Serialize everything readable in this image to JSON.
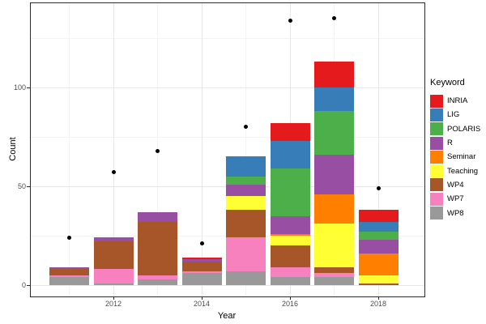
{
  "chart_data": {
    "type": "bar",
    "stacked": true,
    "title": "",
    "xlabel": "Year",
    "ylabel": "Count",
    "categories": [
      2011,
      2012,
      2013,
      2014,
      2015,
      2016,
      2017,
      2018
    ],
    "series": [
      {
        "name": "INRIA",
        "color": "#E41A1C",
        "values": [
          0,
          0,
          0,
          1,
          0,
          9,
          13,
          6
        ]
      },
      {
        "name": "LIG",
        "color": "#377EB8",
        "values": [
          0,
          0,
          0,
          0,
          10,
          14,
          12,
          5
        ]
      },
      {
        "name": "POLARIS",
        "color": "#4DAF4A",
        "values": [
          0,
          0,
          0,
          0,
          4,
          24,
          22,
          4
        ]
      },
      {
        "name": "R",
        "color": "#984EA3",
        "values": [
          1,
          2,
          5,
          1,
          6,
          9,
          20,
          7
        ]
      },
      {
        "name": "Seminar",
        "color": "#FF7F00",
        "values": [
          0,
          0,
          0,
          0,
          0,
          1,
          15,
          11
        ]
      },
      {
        "name": "Teaching",
        "color": "#FFFF33",
        "values": [
          0,
          0,
          0,
          0,
          7,
          5,
          22,
          4
        ]
      },
      {
        "name": "WP4",
        "color": "#A65628",
        "values": [
          3,
          14,
          27,
          5,
          14,
          11,
          3,
          1
        ]
      },
      {
        "name": "WP7",
        "color": "#F781BF",
        "values": [
          1,
          7,
          2,
          1,
          17,
          5,
          2,
          0
        ]
      },
      {
        "name": "WP8",
        "color": "#999999",
        "values": [
          4,
          1,
          3,
          6,
          7,
          4,
          4,
          0
        ]
      }
    ],
    "stack_order": "bottom-to-top is reverse of legend order (WP8 bottom, INRIA top)",
    "bar_totals": [
      9,
      24,
      37,
      14,
      65,
      82,
      113,
      38
    ],
    "scatter_points": {
      "description": "black dot per year",
      "values": [
        24,
        57,
        68,
        21,
        80,
        134,
        135,
        49
      ]
    },
    "x_axis": {
      "label": "Year",
      "major_ticks": [
        2012,
        2014,
        2016,
        2018
      ],
      "minor_gridlines": [
        2011,
        2013,
        2015,
        2017
      ]
    },
    "y_axis": {
      "label": "Count",
      "major_ticks": [
        0,
        50,
        100
      ],
      "minor_gridlines": [
        25,
        75,
        125
      ],
      "range": [
        0,
        142
      ]
    },
    "legend": {
      "title": "Keyword",
      "position": "right"
    },
    "style": {
      "background": "#FFFFFF",
      "panel_border": "#2B2B2B",
      "grid_major": "#E8E8E8",
      "grid_minor": "#F3F3F3",
      "point_color": "#000000",
      "tick_label_color": "#4D4D4D",
      "axis_title_color": "#000000"
    }
  }
}
